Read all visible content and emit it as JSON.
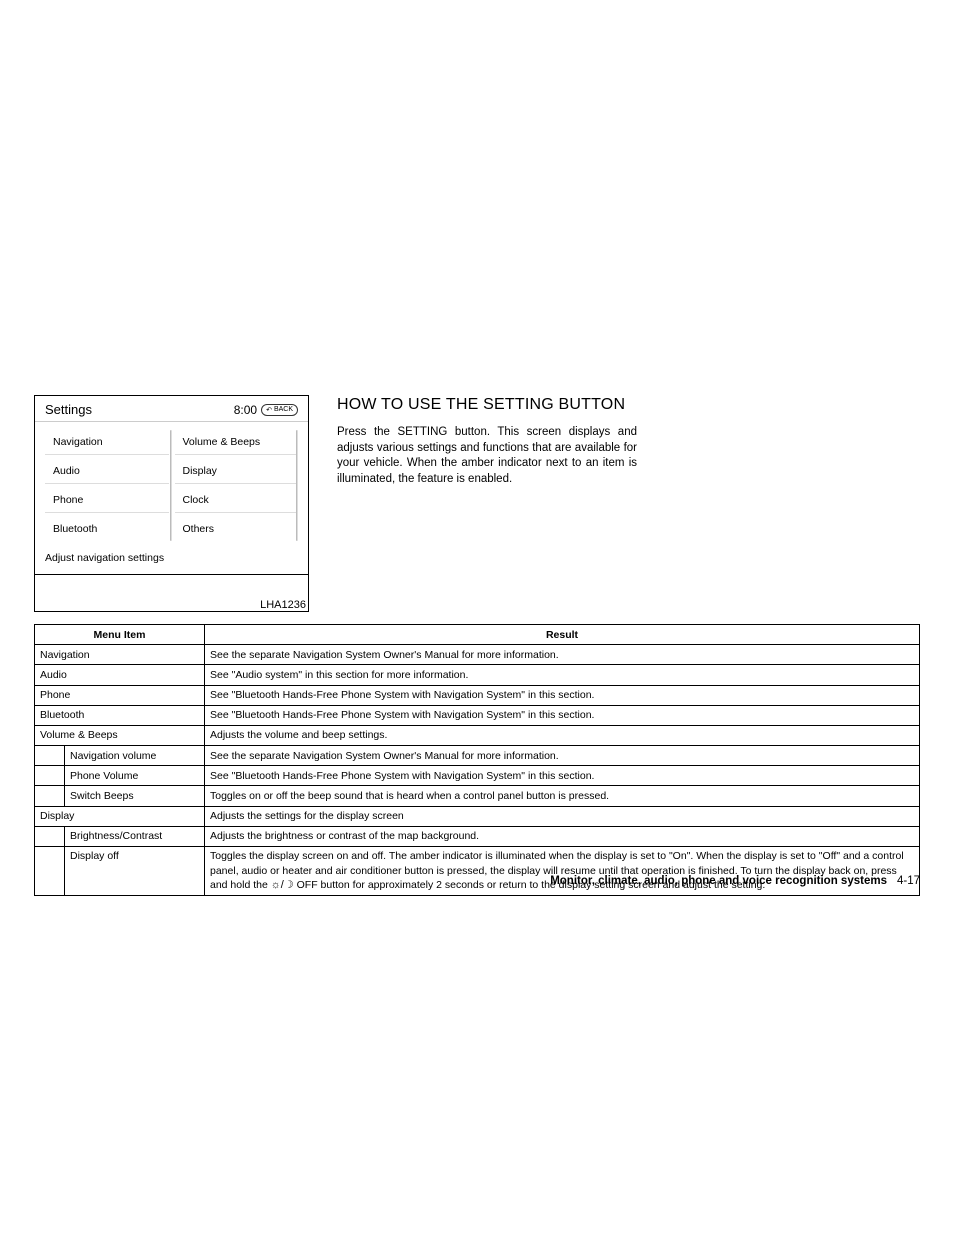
{
  "screenshot": {
    "title": "Settings",
    "clock": "8:00",
    "back_label": "BACK",
    "left_items": [
      "Navigation",
      "Audio",
      "Phone",
      "Bluetooth"
    ],
    "right_items": [
      "Volume & Beeps",
      "Display",
      "Clock",
      "Others"
    ],
    "footer_hint": "Adjust navigation settings",
    "caption": "LHA1236"
  },
  "article": {
    "heading": "HOW TO USE THE SETTING BUTTON",
    "paragraph": "Press the SETTING button. This screen displays and adjusts various settings and functions that are available for your vehicle. When the amber indicator next to an item is illuminated, the feature is enabled."
  },
  "table": {
    "headers": [
      "Menu Item",
      "Result"
    ],
    "rows": [
      {
        "indent": false,
        "label": "Navigation",
        "result": "See the separate Navigation System Owner's Manual for more information."
      },
      {
        "indent": false,
        "label": "Audio",
        "result": "See \"Audio system\" in this section for more information."
      },
      {
        "indent": false,
        "label": "Phone",
        "result": "See \"Bluetooth Hands-Free Phone System with Navigation System\" in this section."
      },
      {
        "indent": false,
        "label": "Bluetooth",
        "result": "See \"Bluetooth Hands-Free Phone System with Navigation System\" in this section."
      },
      {
        "indent": false,
        "label": "Volume & Beeps",
        "result": "Adjusts the volume and beep settings."
      },
      {
        "indent": true,
        "label": "Navigation volume",
        "result": "See the separate Navigation System Owner's Manual for more information."
      },
      {
        "indent": true,
        "label": "Phone Volume",
        "result": "See \"Bluetooth Hands-Free Phone System with Navigation System\" in this section."
      },
      {
        "indent": true,
        "label": "Switch Beeps",
        "result": "Toggles on or off the beep sound that is heard when a control panel button is pressed."
      },
      {
        "indent": false,
        "label": "Display",
        "result": "Adjusts the settings for the display screen"
      },
      {
        "indent": true,
        "label": "Brightness/Contrast",
        "result": "Adjusts the brightness or contrast of the map background."
      },
      {
        "indent": true,
        "label": "Display off",
        "result_pre": "Toggles the display screen on and off. The amber indicator is illuminated when the display is set to \"On\". When the display is set to \"Off\" and a control panel, audio or heater and air conditioner button is pressed, the display will resume until that operation is finished. To turn the display back on, press and hold the ",
        "icon": "☼/☽",
        "result_post": " OFF button for approximately 2 seconds or return to the display setting screen and adjust the setting."
      }
    ]
  },
  "footer": {
    "section_title": "Monitor, climate, audio, phone and voice recognition systems",
    "page_number": "4-17"
  }
}
